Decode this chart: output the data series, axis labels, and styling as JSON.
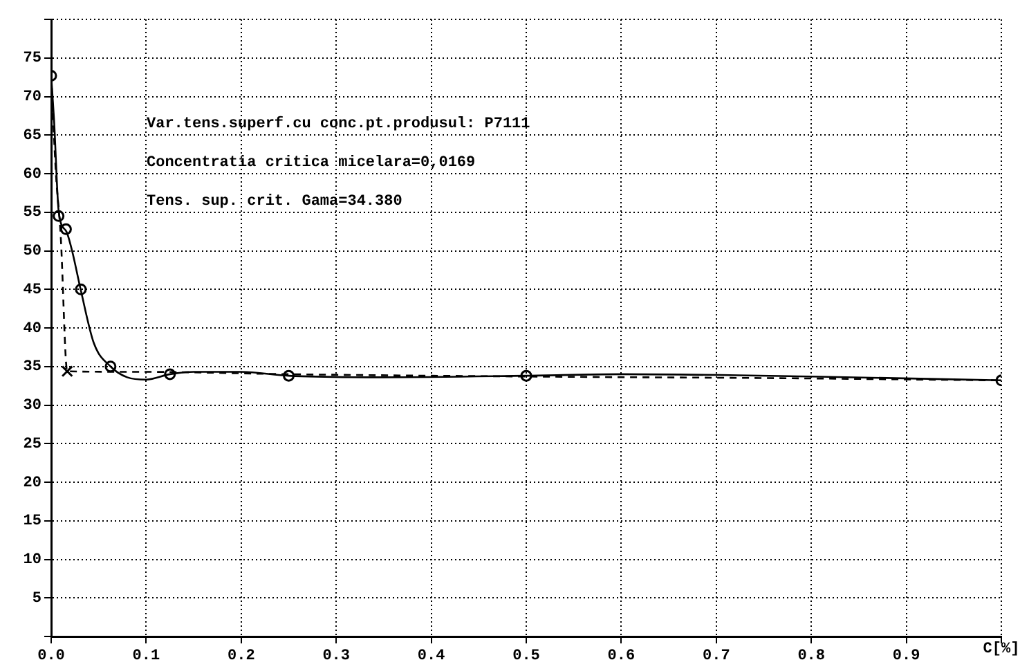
{
  "chart_data": {
    "type": "scatter",
    "xlabel": "C[%]",
    "annotations": [
      "Var.tens.superf.cu conc.pt.produsul: P7111",
      "Concentratia critica micelara=0,0169",
      "Tens. sup. crit. Gama=34.380"
    ],
    "series": [
      {
        "type": "line",
        "color": "#000000",
        "marker": "none",
        "line_style": "solid",
        "x": [
          0,
          0.003,
          0.008,
          0.016,
          0.022,
          0.031,
          0.045,
          0.0625,
          0.08,
          0.1,
          0.125,
          0.15,
          0.2,
          0.25,
          0.35,
          0.5,
          0.6,
          0.8,
          1.0
        ],
        "values": [
          72.7,
          67,
          55,
          52.5,
          50,
          45,
          38,
          35,
          33.6,
          33.3,
          34,
          34.3,
          34.3,
          33.8,
          33.6,
          33.8,
          34,
          33.7,
          33.2
        ]
      },
      {
        "type": "line",
        "color": "#000000",
        "marker": "none",
        "line_style": "dashed",
        "x": [
          0,
          0.005,
          0.01,
          0.0169,
          0.1,
          0.25,
          0.5,
          0.75,
          1.0
        ],
        "values": [
          72.7,
          60,
          52,
          34.38,
          34.3,
          34,
          33.7,
          33.5,
          33.2
        ]
      },
      {
        "type": "scatter",
        "color": "#000000",
        "marker": "circle",
        "x": [
          0,
          0.0078,
          0.0156,
          0.03125,
          0.0625,
          0.125,
          0.25,
          0.5,
          1.0
        ],
        "values": [
          72.7,
          54.5,
          52.8,
          45,
          35,
          34,
          33.8,
          33.8,
          33.2
        ]
      },
      {
        "type": "scatter",
        "color": "#000000",
        "marker": "cross",
        "x": [
          0.0169
        ],
        "values": [
          34.38
        ]
      }
    ],
    "xlim": [
      0,
      1
    ],
    "xticks": [
      {
        "value": 0,
        "label": "0.0"
      },
      0.1,
      0.2,
      0.3,
      0.4,
      0.5,
      0.6,
      0.7,
      0.8,
      0.9,
      {
        "value": 1,
        "label": null
      }
    ],
    "ylim": [
      0,
      80
    ],
    "yticks": [
      {
        "value": 0,
        "label": null
      },
      5,
      10,
      15,
      20,
      25,
      30,
      35,
      40,
      45,
      50,
      55,
      60,
      65,
      70,
      75,
      {
        "value": 80,
        "label": null
      }
    ],
    "grid": true,
    "legend": false
  }
}
